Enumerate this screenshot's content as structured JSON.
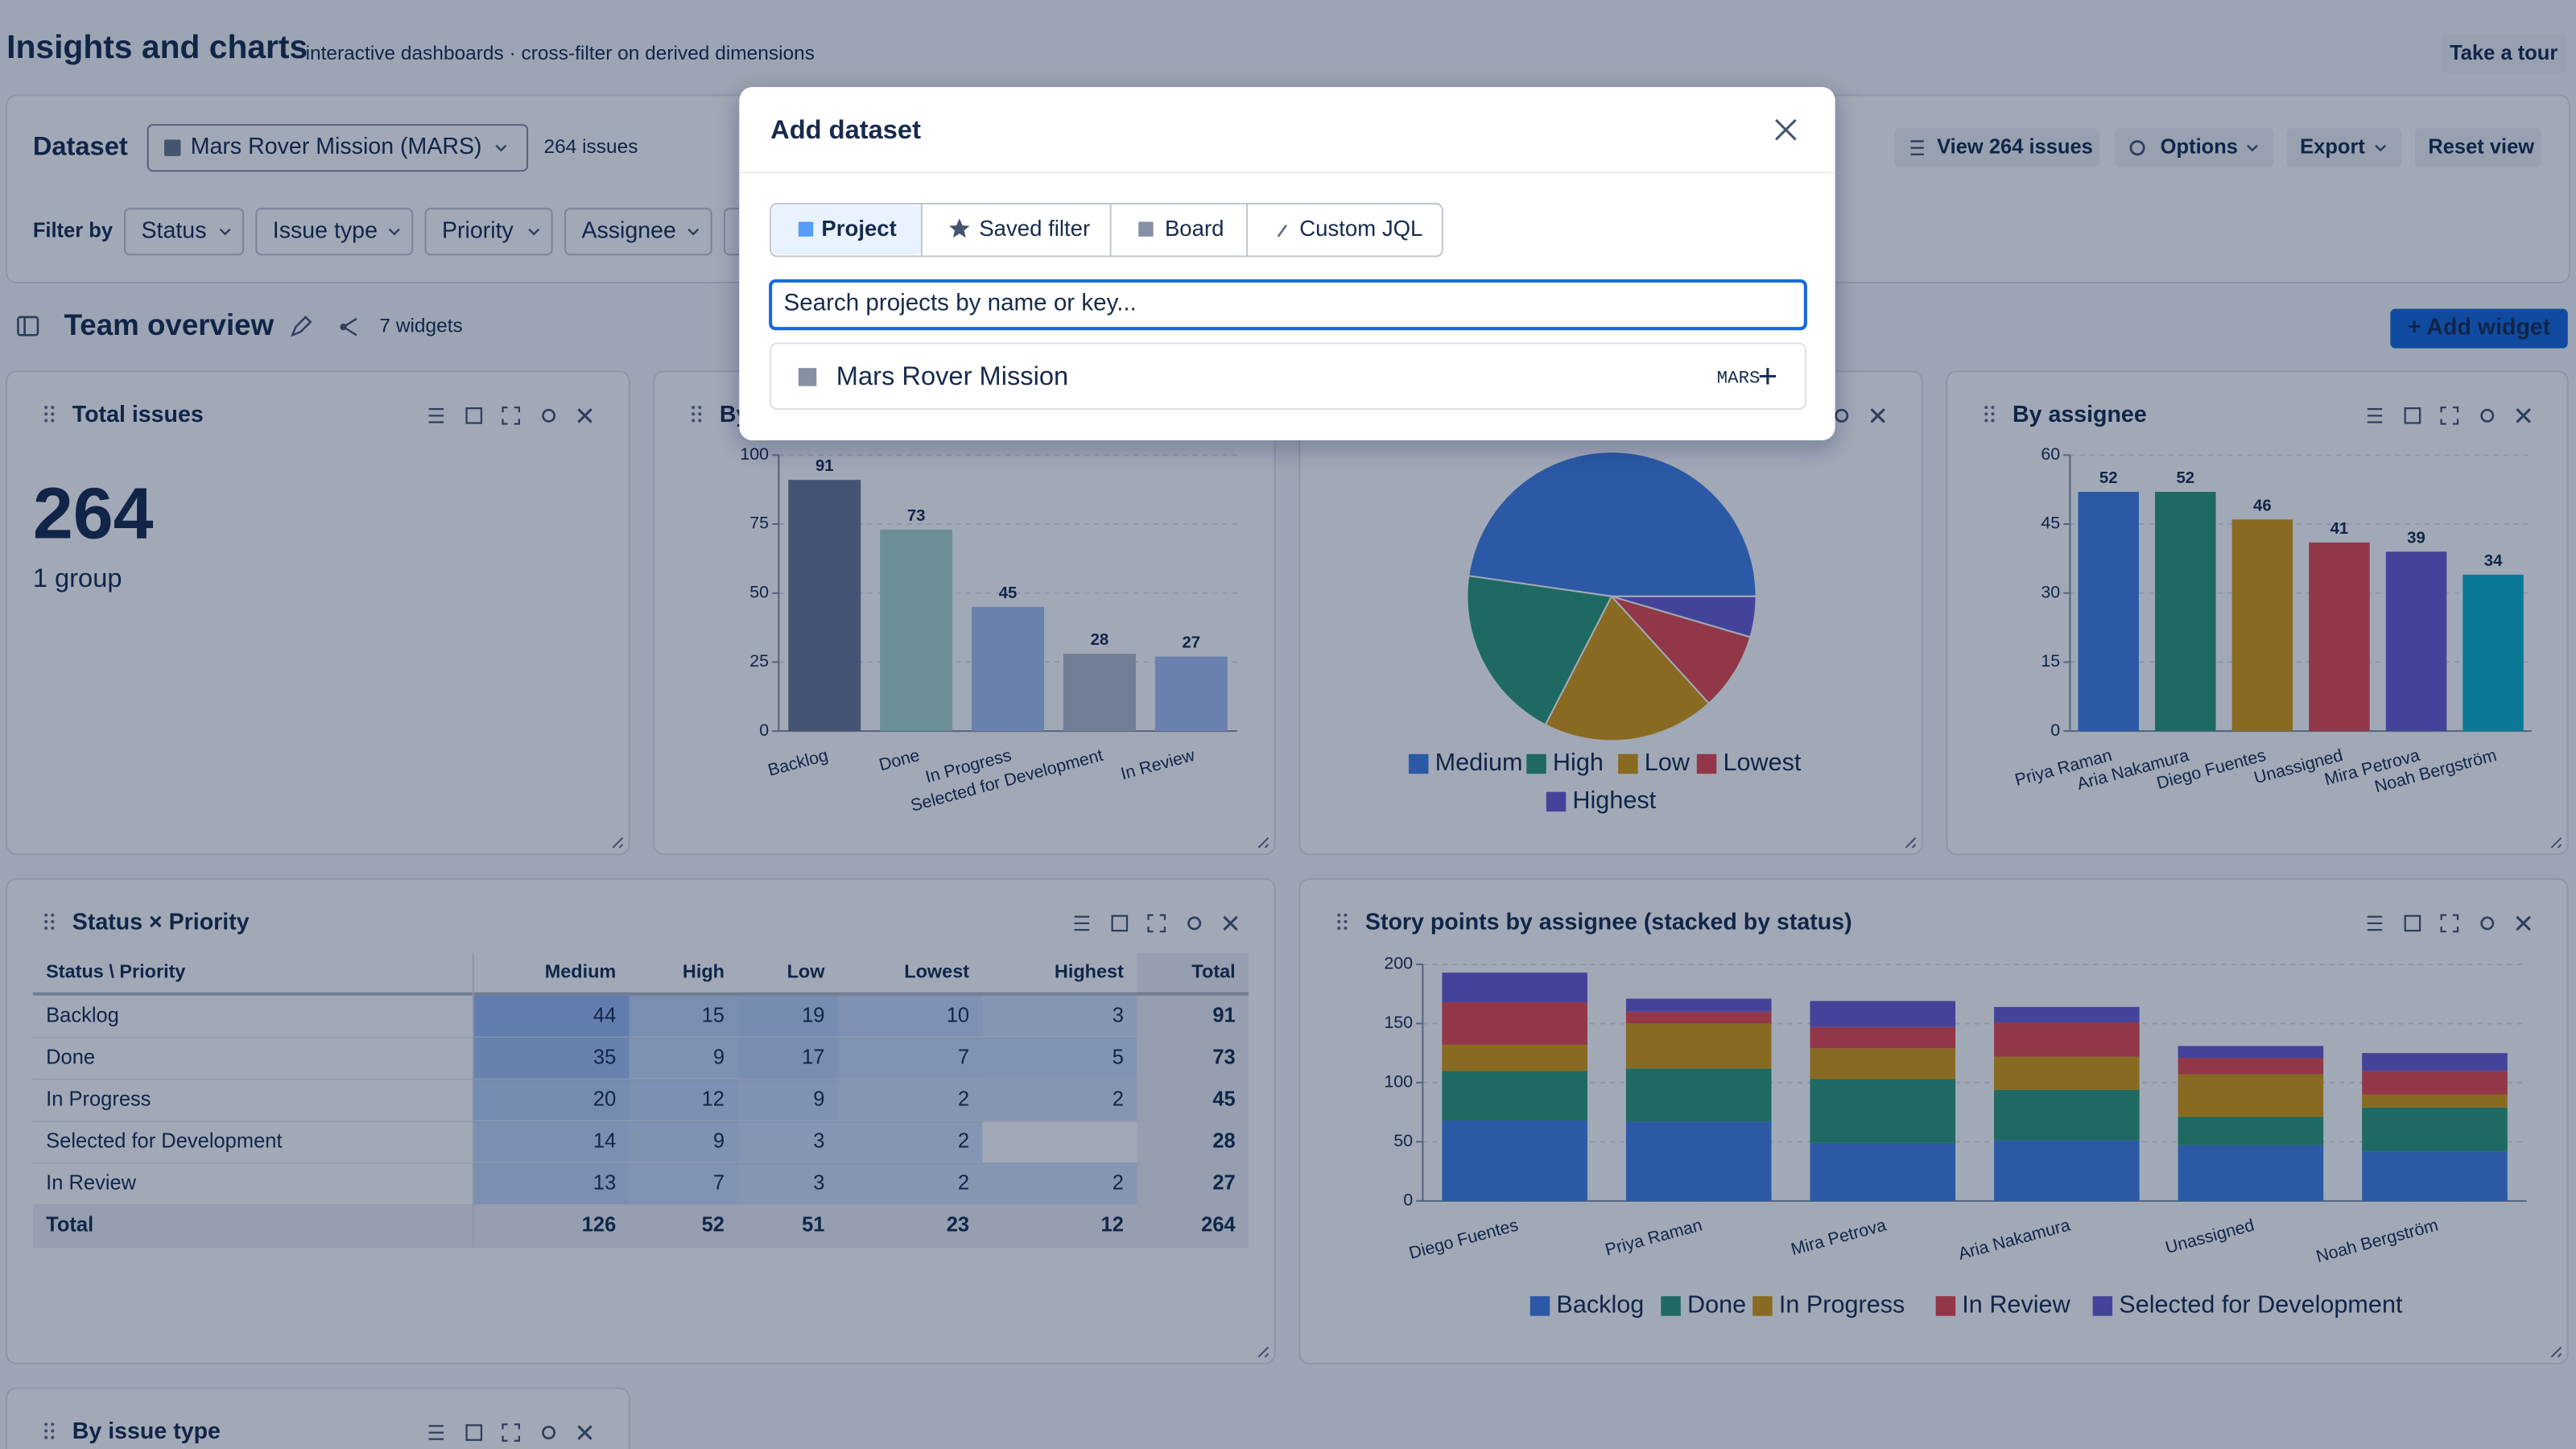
{
  "header": {
    "title": "Insights and charts",
    "subtitle": "interactive dashboards · cross-filter on derived dimensions",
    "tour_button": "Take a tour"
  },
  "dataset_bar": {
    "label": "Dataset",
    "selected": "Mars Rover Mission (MARS)",
    "count": "264 issues",
    "actions": [
      "View 264 issues",
      "Options",
      "Export",
      "Reset view"
    ]
  },
  "filters": {
    "label": "Filter by",
    "items": [
      "Status",
      "Issue type",
      "Priority",
      "Assignee"
    ]
  },
  "section": {
    "title": "Team overview",
    "widget_count": "7 widgets",
    "add_button": "+ Add widget"
  },
  "widgets": [
    {
      "title": "Total issues",
      "value": 264,
      "caption": "1 group"
    },
    {
      "title": "By",
      "chart_data": {
        "type": "bar",
        "categories": [
          "Backlog",
          "Done",
          "In Progress",
          "Selected for Development",
          "In Review"
        ],
        "values": [
          91,
          73,
          45,
          28,
          27
        ],
        "colors": [
          "#6b7794",
          "#a9d6c9",
          "#a6bff0",
          "#b3bac8",
          "#a6bff0"
        ],
        "ylim": [
          0,
          100
        ],
        "yticks": [
          0,
          25,
          50,
          75,
          100
        ],
        "grid": true
      }
    },
    {
      "chart_data": {
        "type": "pie",
        "categories": [
          "Medium",
          "High",
          "Low",
          "Lowest",
          "Highest"
        ],
        "values": [
          126,
          52,
          51,
          23,
          12
        ],
        "colors": [
          "#417fe3",
          "#2d9a77",
          "#d9990f",
          "#e5484d",
          "#6a5bd0"
        ],
        "legend": "bottom"
      }
    },
    {
      "title": "By assignee",
      "chart_data": {
        "type": "bar",
        "categories": [
          "Priya Raman",
          "Aria Nakamura",
          "Diego Fuentes",
          "Unassigned",
          "Mira Petrova",
          "Noah Bergström"
        ],
        "values": [
          52,
          52,
          46,
          41,
          39,
          34
        ],
        "colors": [
          "#417fe3",
          "#2d9a77",
          "#d9990f",
          "#e5484d",
          "#6a5bd0",
          "#0cb2cb"
        ],
        "ylim": [
          0,
          60
        ],
        "yticks": [
          0,
          15,
          30,
          45,
          60
        ],
        "grid": true
      }
    },
    {
      "title": "Status × Priority",
      "table": {
        "columns": [
          "Status \\ Priority",
          "Medium",
          "High",
          "Low",
          "Lowest",
          "Highest",
          "Total"
        ],
        "rows": [
          [
            "Backlog",
            44,
            15,
            19,
            10,
            3,
            91
          ],
          [
            "Done",
            35,
            9,
            17,
            7,
            5,
            73
          ],
          [
            "In Progress",
            20,
            12,
            9,
            2,
            2,
            45
          ],
          [
            "Selected for Development",
            14,
            9,
            3,
            2,
            null,
            28
          ],
          [
            "In Review",
            13,
            7,
            3,
            2,
            2,
            27
          ],
          [
            "Total",
            126,
            52,
            51,
            23,
            12,
            264
          ]
        ]
      }
    },
    {
      "title": "Story points by assignee (stacked by status)",
      "chart_data": {
        "type": "stacked_bar",
        "categories": [
          "Diego Fuentes",
          "Priya Raman",
          "Mira Petrova",
          "Aria Nakamura",
          "Unassigned",
          "Noah Bergström"
        ],
        "series": [
          {
            "name": "Backlog",
            "color": "#417fe3",
            "values": [
              68,
              67,
              49,
              51,
              47,
              42
            ]
          },
          {
            "name": "Done",
            "color": "#2d9a77",
            "values": [
              42,
              45,
              54,
              43,
              24,
              37
            ]
          },
          {
            "name": "In Progress",
            "color": "#d9990f",
            "values": [
              22,
              38,
              26,
              28,
              36,
              11
            ]
          },
          {
            "name": "In Review",
            "color": "#e5484d",
            "values": [
              36,
              10,
              18,
              29,
              14,
              20
            ]
          },
          {
            "name": "Selected for Development",
            "color": "#6a5bd0",
            "values": [
              25,
              11,
              22,
              13,
              10,
              15
            ]
          }
        ],
        "ylim": [
          0,
          200
        ],
        "yticks": [
          0,
          50,
          100,
          150,
          200
        ],
        "grid": true,
        "legend": "bottom"
      }
    },
    {
      "title": "By issue type"
    }
  ],
  "modal": {
    "title": "Add dataset",
    "tabs": [
      "Project",
      "Saved filter",
      "Board",
      "Custom JQL"
    ],
    "search_placeholder": "Search projects by name or key...",
    "results": [
      {
        "name": "Mars Rover Mission",
        "key": "MARS"
      }
    ]
  }
}
